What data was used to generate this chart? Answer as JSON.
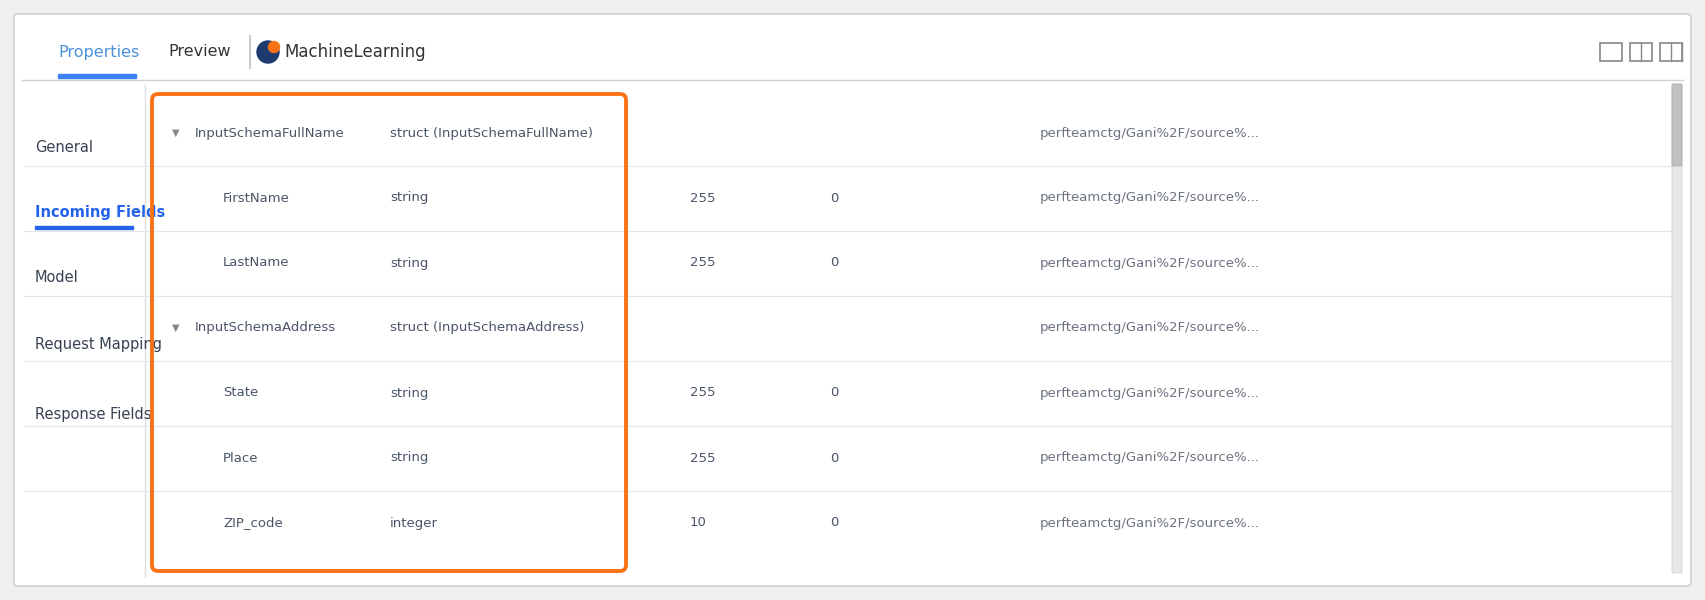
{
  "bg_color": "#f0f0f0",
  "panel_bg": "#ffffff",
  "panel_border": "#d0d0d0",
  "tab_bar": {
    "properties_tab": "Properties",
    "preview_tab": "Preview",
    "node_name": "MachineLearning",
    "properties_color": "#4a90d9",
    "preview_color": "#333333",
    "node_color": "#333333",
    "underline_color": "#3b82f6"
  },
  "left_nav": {
    "items": [
      "General",
      "Incoming Fields",
      "Model",
      "Request Mapping",
      "Response Fields"
    ],
    "active_item": "Incoming Fields",
    "active_color": "#2563eb",
    "inactive_color": "#374151"
  },
  "orange_box_color": "#f97316",
  "row_divider_color": "#e2e8f0",
  "rows": [
    {
      "indent": 0,
      "is_struct": true,
      "name": "InputSchemaFullName",
      "type": "struct (InputSchemaFullName)",
      "length": "",
      "scale": "",
      "origin": "perfteamctg/Gani%2F/source%..."
    },
    {
      "indent": 1,
      "is_struct": false,
      "name": "FirstName",
      "type": "string",
      "length": "255",
      "scale": "0",
      "origin": "perfteamctg/Gani%2F/source%..."
    },
    {
      "indent": 1,
      "is_struct": false,
      "name": "LastName",
      "type": "string",
      "length": "255",
      "scale": "0",
      "origin": "perfteamctg/Gani%2F/source%..."
    },
    {
      "indent": 0,
      "is_struct": true,
      "name": "InputSchemaAddress",
      "type": "struct (InputSchemaAddress)",
      "length": "",
      "scale": "",
      "origin": "perfteamctg/Gani%2F/source%..."
    },
    {
      "indent": 1,
      "is_struct": false,
      "name": "State",
      "type": "string",
      "length": "255",
      "scale": "0",
      "origin": "perfteamctg/Gani%2F/source%..."
    },
    {
      "indent": 1,
      "is_struct": false,
      "name": "Place",
      "type": "string",
      "length": "255",
      "scale": "0",
      "origin": "perfteamctg/Gani%2F/source%..."
    },
    {
      "indent": 1,
      "is_struct": false,
      "name": "ZIP_code",
      "type": "integer",
      "length": "10",
      "scale": "0",
      "origin": "perfteamctg/Gani%2F/source%..."
    }
  ],
  "field_name_color": "#4a5568",
  "field_type_color": "#4a5568",
  "struct_name_color": "#4a5568",
  "struct_type_color": "#4a5568",
  "length_scale_color": "#4a5568",
  "origin_color": "#6b7280",
  "row_font_size": 9.5
}
